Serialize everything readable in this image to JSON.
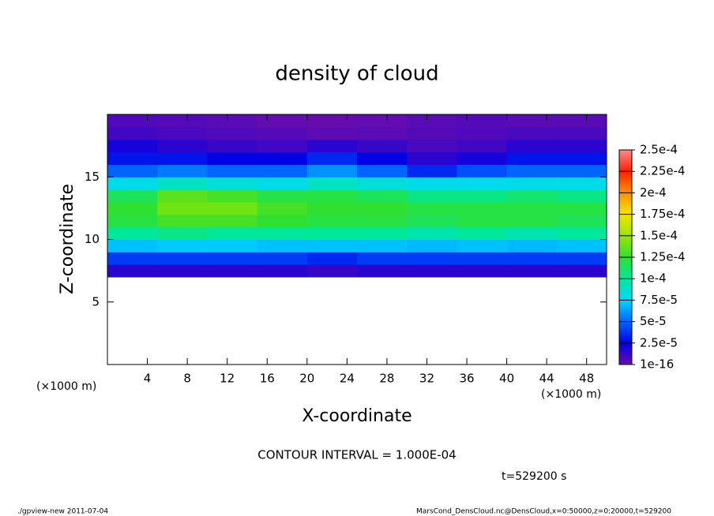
{
  "chart_data": {
    "type": "heatmap",
    "title": "density of cloud",
    "x_label": "X-coordinate",
    "y_label": "Z-coordinate",
    "x_unit": "(×1000 m)",
    "y_unit": "(×1000 m)",
    "contour_note": "CONTOUR INTERVAL = 1.000E-04",
    "time_note": "t=529200 s",
    "footer_left": "./gpview-new  2011-07-04",
    "footer_right": "MarsCond_DensCloud.nc@DensCloud,x=0:50000,z=0:20000,t=529200",
    "xlim": [
      0,
      50
    ],
    "ylim": [
      0,
      20
    ],
    "xticks": [
      4,
      8,
      12,
      16,
      20,
      24,
      28,
      32,
      36,
      40,
      44,
      48
    ],
    "yticks": [
      5,
      10,
      15
    ],
    "xbins": [
      0,
      5,
      10,
      15,
      20,
      25,
      30,
      35,
      40,
      45,
      50
    ],
    "ybins": [
      7,
      8,
      9,
      10,
      11,
      12,
      13,
      14,
      15,
      16,
      17,
      18,
      19,
      20
    ],
    "values": [
      [
        1.5e-05,
        1.5e-05,
        1.5e-05,
        1.5e-05,
        1.2e-05,
        1.5e-05,
        1.5e-05,
        1.5e-05,
        1.5e-05,
        1.5e-05
      ],
      [
        4e-05,
        4e-05,
        4e-05,
        4e-05,
        3.5e-05,
        4e-05,
        4e-05,
        4e-05,
        4e-05,
        4e-05
      ],
      [
        7e-05,
        7.2e-05,
        7.2e-05,
        7e-05,
        7e-05,
        7e-05,
        6.8e-05,
        7e-05,
        6.8e-05,
        7e-05
      ],
      [
        0.0001,
        0.000105,
        0.0001,
        0.0001,
        0.0001,
        0.0001,
        9.5e-05,
        0.0001,
        9.5e-05,
        0.0001
      ],
      [
        0.00012,
        0.00013,
        0.00013,
        0.000125,
        0.00012,
        0.00012,
        0.000115,
        0.00012,
        0.00012,
        0.000115
      ],
      [
        0.000125,
        0.00014,
        0.00014,
        0.00013,
        0.000125,
        0.000125,
        0.00012,
        0.00012,
        0.00012,
        0.00012
      ],
      [
        0.000115,
        0.000135,
        0.00013,
        0.00012,
        0.00012,
        0.000115,
        0.000105,
        0.000105,
        0.00011,
        0.000105
      ],
      [
        8e-05,
        9e-05,
        8.5e-05,
        8e-05,
        9e-05,
        8.5e-05,
        8e-05,
        8e-05,
        8e-05,
        8e-05
      ],
      [
        5e-05,
        5.5e-05,
        5e-05,
        5e-05,
        6e-05,
        5e-05,
        3.5e-05,
        4.5e-05,
        5e-05,
        5e-05
      ],
      [
        3e-05,
        3e-05,
        2.5e-05,
        2.5e-05,
        3.5e-05,
        2.5e-05,
        1.5e-05,
        2e-05,
        3e-05,
        3e-05
      ],
      [
        2e-05,
        1.5e-05,
        1.2e-05,
        1e-05,
        1.5e-05,
        1.2e-05,
        8e-06,
        1e-05,
        1.5e-05,
        1.5e-05
      ],
      [
        1e-05,
        8e-06,
        6e-06,
        5e-06,
        3e-06,
        4e-06,
        5e-06,
        6e-06,
        8e-06,
        8e-06
      ],
      [
        6e-06,
        5e-06,
        4e-06,
        2e-06,
        1e-06,
        2e-06,
        4e-06,
        5e-06,
        4e-06,
        4e-06
      ]
    ],
    "levels": [
      {
        "value": 1e-16,
        "label": "1e-16"
      },
      {
        "value": 2.5e-05,
        "label": "2.5e-5"
      },
      {
        "value": 5e-05,
        "label": "5e-5"
      },
      {
        "value": 7.5e-05,
        "label": "7.5e-5"
      },
      {
        "value": 0.0001,
        "label": "1e-4"
      },
      {
        "value": 0.000125,
        "label": "1.25e-4"
      },
      {
        "value": 0.00015,
        "label": "1.5e-4"
      },
      {
        "value": 0.000175,
        "label": "1.75e-4"
      },
      {
        "value": 0.0002,
        "label": "2e-4"
      },
      {
        "value": 0.000225,
        "label": "2.25e-4"
      },
      {
        "value": 0.00025,
        "label": "2.5e-4"
      }
    ],
    "colors": [
      "#6a0dad",
      "#0000e6",
      "#0064ff",
      "#00d8ff",
      "#00e89a",
      "#30e030",
      "#9ae600",
      "#f0e600",
      "#ff9000",
      "#ff2000",
      "#ff8a8a"
    ]
  }
}
